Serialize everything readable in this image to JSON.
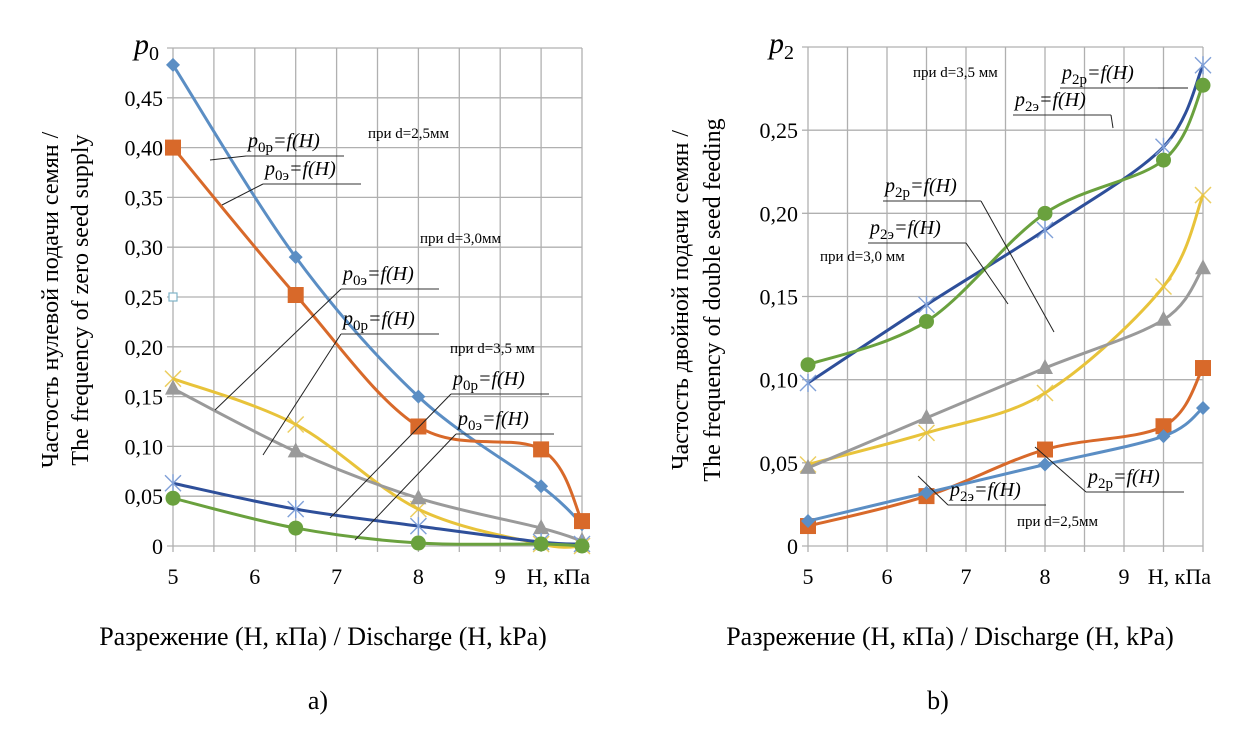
{
  "chart_data": [
    {
      "id": "a",
      "type": "line",
      "panel_label": "a)",
      "y_symbol": "p",
      "y_symbol_sub": "0",
      "ylabel_line1": "Частость нулевой подачи семян /",
      "ylabel_line2": "The frequency of zero seed supply",
      "xlabel_unit": "H, кПа",
      "xlabel_caption": "Разрежение (H, кПа) / Discharge (H, kPa)",
      "xlim": [
        5,
        10
      ],
      "ylim": [
        0,
        0.5
      ],
      "x_ticks": [
        5,
        6,
        7,
        8,
        9
      ],
      "x_tick_labels": [
        "5",
        "6",
        "7",
        "8",
        "9"
      ],
      "y_ticks": [
        0,
        0.05,
        0.1,
        0.15,
        0.2,
        0.25,
        0.3,
        0.35,
        0.4,
        0.45
      ],
      "y_tick_labels": [
        "0",
        "0,05",
        "0,10",
        "0,15",
        "0,20",
        "0,25",
        "0,30",
        "0,35",
        "0,40",
        "0,45"
      ],
      "grid": true,
      "series": [
        {
          "name": "p0p = f(H), d=2,5 мм",
          "color": "#5b8ec4",
          "marker": "diamond",
          "x": [
            5,
            6.5,
            8,
            9.5,
            10
          ],
          "values": [
            0.483,
            0.29,
            0.15,
            0.06,
            0.022
          ]
        },
        {
          "name": "p0э = f(H), d=2,5 мм",
          "color": "#d8692a",
          "marker": "square",
          "x": [
            5,
            6.5,
            8,
            9.5,
            10
          ],
          "values": [
            0.4,
            0.252,
            0.12,
            0.097,
            0.025
          ]
        },
        {
          "name": "p0p = f(H), d=3,0 мм",
          "color": "#e8c33a",
          "marker": "x",
          "x": [
            5,
            6.5,
            8,
            9.5,
            10
          ],
          "values": [
            0.168,
            0.122,
            0.037,
            0.002,
            0.0
          ]
        },
        {
          "name": "p0э = f(H), d=3,0 мм",
          "color": "#9a9a9a",
          "marker": "triangle",
          "x": [
            5,
            6.5,
            8,
            9.5,
            10
          ],
          "values": [
            0.158,
            0.095,
            0.048,
            0.018,
            0.005
          ]
        },
        {
          "name": "p0p = f(H), d=3,5 мм",
          "color": "#2e4f9a",
          "marker": "star",
          "x": [
            5,
            6.5,
            8,
            9.5,
            10
          ],
          "values": [
            0.063,
            0.037,
            0.02,
            0.004,
            0.002
          ]
        },
        {
          "name": "p0э = f(H), d=3,5 мм",
          "color": "#6aa13e",
          "marker": "circle",
          "x": [
            5,
            6.5,
            8,
            9.5,
            10
          ],
          "values": [
            0.048,
            0.018,
            0.003,
            0.002,
            0.0
          ]
        }
      ],
      "extra_marker": {
        "x": 5,
        "value": 0.25,
        "color": "#7fb3c8"
      },
      "annotations": [
        {
          "sym": "p",
          "sub": "0p",
          "text": "=f(H)"
        },
        {
          "sym": "p",
          "sub": "0э",
          "text": "=f(H)"
        },
        {
          "sym": "p",
          "sub": "0э",
          "text": "=f(H)"
        },
        {
          "sym": "p",
          "sub": "0p",
          "text": "=f(H)"
        },
        {
          "sym": "p",
          "sub": "0p",
          "text": "=f(H)"
        },
        {
          "sym": "p",
          "sub": "0э",
          "text": "=f(H)"
        }
      ],
      "notes": [
        "при d=2,5мм",
        "при d=3,0мм",
        "при d=3,5 мм"
      ]
    },
    {
      "id": "b",
      "type": "line",
      "panel_label": "b)",
      "y_symbol": "p",
      "y_symbol_sub": "2",
      "ylabel_line1": "Частость двойной подачи семян /",
      "ylabel_line2": "The frequency of double seed feeding",
      "xlabel_unit": "H, кПа",
      "xlabel_caption": "Разрежение (H, кПа) / Discharge (H, kPa)",
      "xlim": [
        5,
        10
      ],
      "ylim": [
        0,
        0.3
      ],
      "x_ticks": [
        5,
        6,
        7,
        8,
        9
      ],
      "x_tick_labels": [
        "5",
        "6",
        "7",
        "8",
        "9"
      ],
      "y_ticks": [
        0,
        0.05,
        0.1,
        0.15,
        0.2,
        0.25
      ],
      "y_tick_labels": [
        "0",
        "0,05",
        "0,10",
        "0,15",
        "0,20",
        "0,25"
      ],
      "grid": true,
      "series": [
        {
          "name": "p2p = f(H), d=3,5 мм",
          "color": "#2e4f9a",
          "marker": "star",
          "x": [
            5,
            6.5,
            8,
            9.5,
            10
          ],
          "values": [
            0.098,
            0.145,
            0.19,
            0.24,
            0.289
          ]
        },
        {
          "name": "p2э = f(H), d=3,5 мм",
          "color": "#6aa13e",
          "marker": "circle",
          "x": [
            5,
            6.5,
            8,
            9.5,
            10
          ],
          "values": [
            0.109,
            0.135,
            0.2,
            0.232,
            0.277
          ]
        },
        {
          "name": "p2p = f(H), d=3,0 мм",
          "color": "#e8c33a",
          "marker": "x",
          "x": [
            5,
            6.5,
            8,
            9.5,
            10
          ],
          "values": [
            0.049,
            0.068,
            0.092,
            0.156,
            0.211
          ]
        },
        {
          "name": "p2э = f(H), d=3,0 мм",
          "color": "#9a9a9a",
          "marker": "triangle",
          "x": [
            5,
            6.5,
            8,
            9.5,
            10
          ],
          "values": [
            0.047,
            0.077,
            0.107,
            0.136,
            0.167
          ]
        },
        {
          "name": "p2э = f(H), d=2,5 мм",
          "color": "#d8692a",
          "marker": "square",
          "x": [
            5,
            6.5,
            8,
            9.5,
            10
          ],
          "values": [
            0.012,
            0.03,
            0.058,
            0.072,
            0.107
          ]
        },
        {
          "name": "p2p = f(H), d=2,5 мм",
          "color": "#5b8ec4",
          "marker": "diamond",
          "x": [
            5,
            6.5,
            8,
            9.5,
            10
          ],
          "values": [
            0.015,
            0.032,
            0.049,
            0.066,
            0.083
          ]
        }
      ],
      "annotations": [
        {
          "sym": "p",
          "sub": "2p",
          "text": "=f(H)"
        },
        {
          "sym": "p",
          "sub": "2э",
          "text": "=f(H)"
        },
        {
          "sym": "p",
          "sub": "2p",
          "text": "=f(H)"
        },
        {
          "sym": "p",
          "sub": "2э",
          "text": "=f(H)"
        },
        {
          "sym": "p",
          "sub": "2э",
          "text": "=f(H)"
        },
        {
          "sym": "p",
          "sub": "2p",
          "text": "=f(H)"
        }
      ],
      "notes": [
        "при d=3,5 мм",
        "при d=3,0 мм",
        "при d=2,5мм"
      ]
    }
  ]
}
